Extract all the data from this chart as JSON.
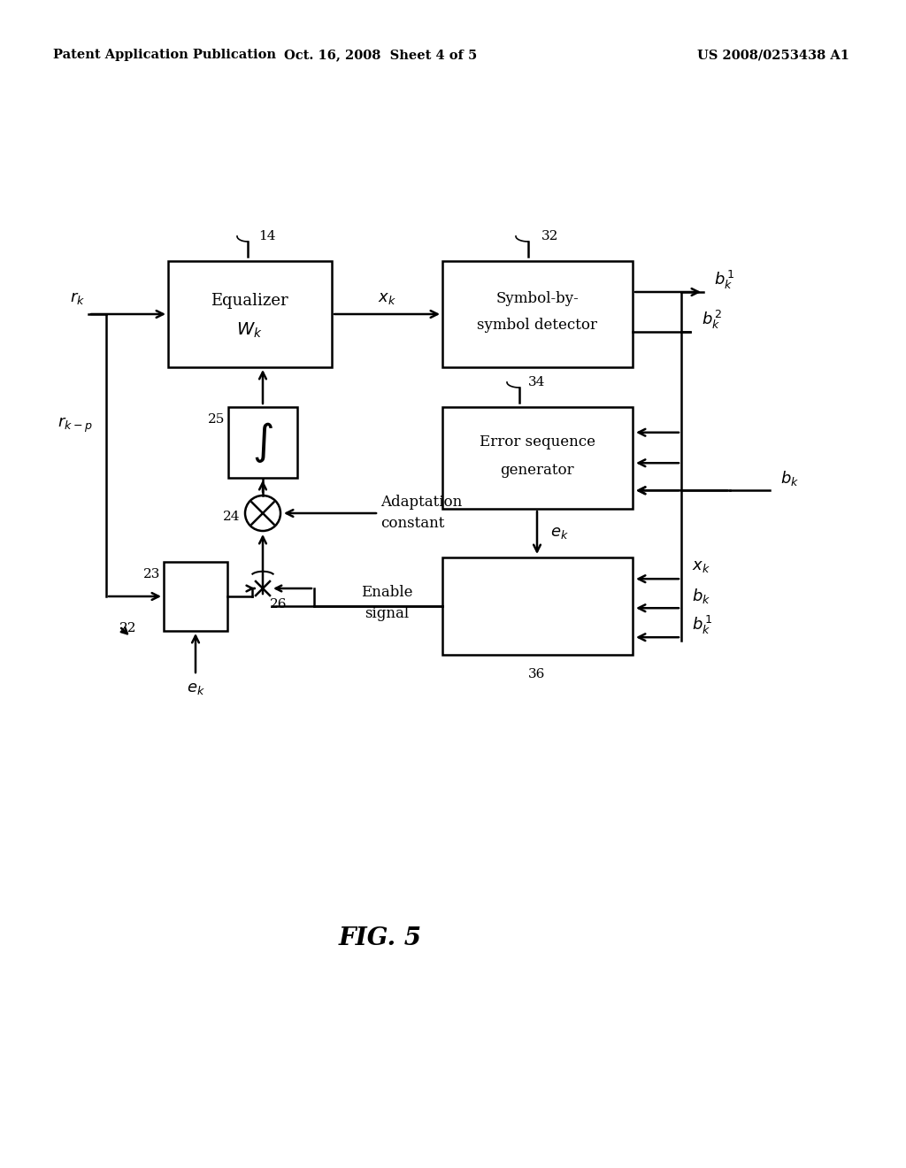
{
  "bg_color": "#ffffff",
  "lc": "#000000",
  "header_left": "Patent Application Publication",
  "header_center": "Oct. 16, 2008  Sheet 4 of 5",
  "header_right": "US 2008/0253438 A1",
  "fig_label": "FIG. 5",
  "lw": 1.8
}
